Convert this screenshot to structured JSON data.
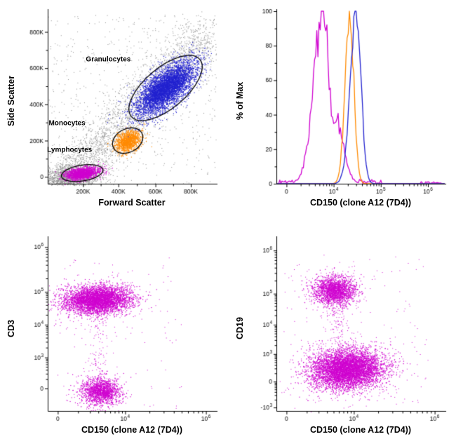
{
  "figure_type": "flow-cytometry-four-panel",
  "colors": {
    "magenta": "#cf00cf",
    "orange": "#ff8a00",
    "blue": "#2222cf",
    "gray": "#8c8c8c",
    "axis": "#000000",
    "background": "#ffffff"
  },
  "chart_data": [
    {
      "id": "fsc-ssc-dotplot",
      "type": "scatter",
      "xlabel": "Forward Scatter",
      "ylabel": "Side Scatter",
      "xlim": [
        "0",
        "940K"
      ],
      "ylim": [
        "0",
        "920K"
      ],
      "x_ticks": [
        {
          "label": "200K",
          "pos": 0.21
        },
        {
          "label": "400K",
          "pos": 0.42
        },
        {
          "label": "600K",
          "pos": 0.64
        },
        {
          "label": "800K",
          "pos": 0.85
        }
      ],
      "y_ticks": [
        {
          "label": "0",
          "pos": 0.04
        },
        {
          "label": "200K",
          "pos": 0.25
        },
        {
          "label": "400K",
          "pos": 0.46
        },
        {
          "label": "600K",
          "pos": 0.67
        },
        {
          "label": "800K",
          "pos": 0.88
        }
      ],
      "x_minor": "linear",
      "y_minor": "linear",
      "seed": 7,
      "clusters": [
        {
          "name": "debris-gray",
          "type": "gauss",
          "color": "gray",
          "cx": 0.14,
          "cy": 0.045,
          "sx": 0.09,
          "sy": 0.035,
          "angle": 5,
          "count": 1500,
          "size": 1
        },
        {
          "name": "background-diagonal-gray",
          "type": "diag",
          "color": "gray",
          "from": [
            0.1,
            0.02
          ],
          "to": [
            0.97,
            0.88
          ],
          "spread": 0.075,
          "count": 2600,
          "size": 1
        },
        {
          "name": "background-sparse-gray",
          "type": "uniform",
          "color": "gray",
          "x0": 0.0,
          "y0": 0.0,
          "x1": 1.0,
          "y1": 0.98,
          "count": 550,
          "size": 1
        },
        {
          "name": "lymphocytes",
          "type": "gauss",
          "color": "magenta",
          "cx": 0.205,
          "cy": 0.062,
          "sx": 0.052,
          "sy": 0.017,
          "angle": 9,
          "count": 1500,
          "size": 1.2
        },
        {
          "name": "monocytes",
          "type": "gauss",
          "color": "orange",
          "cx": 0.475,
          "cy": 0.25,
          "sx": 0.04,
          "sy": 0.027,
          "angle": 28,
          "count": 1200,
          "size": 1.2
        },
        {
          "name": "granulocytes",
          "type": "gauss",
          "color": "blue",
          "cx": 0.7,
          "cy": 0.555,
          "sx": 0.105,
          "sy": 0.046,
          "angle": 40,
          "count": 4800,
          "size": 1.2
        }
      ],
      "gates": [
        {
          "name": "granulocytes-gate",
          "cx": 0.7,
          "cy": 0.555,
          "rx": 0.265,
          "ry": 0.118,
          "angle": 40
        },
        {
          "name": "monocytes-gate",
          "cx": 0.475,
          "cy": 0.25,
          "rx": 0.095,
          "ry": 0.068,
          "angle": 28
        },
        {
          "name": "lymphocytes-gate",
          "cx": 0.205,
          "cy": 0.062,
          "rx": 0.125,
          "ry": 0.046,
          "angle": 9
        }
      ],
      "annotations": [
        {
          "text": "Granulocytes",
          "x": 0.36,
          "y": 0.72
        },
        {
          "text": "Monocytes",
          "x": 0.115,
          "y": 0.35
        },
        {
          "text": "Lymphocytes",
          "x": 0.13,
          "y": 0.195
        }
      ]
    },
    {
      "id": "cd150-histogram",
      "type": "histogram",
      "xlabel": "CD150 (clone A12 (7D4))",
      "ylabel": "% of Max",
      "ylim": [
        0,
        100
      ],
      "x_ticks": [
        {
          "label": "0",
          "pos": 0.06
        },
        {
          "label": "10^4",
          "pos": 0.34
        },
        {
          "label": "10^5",
          "pos": 0.62
        },
        {
          "label": "10^6",
          "pos": 0.9
        }
      ],
      "y_ticks": [
        {
          "label": "0",
          "pos": 0.0
        },
        {
          "label": "20",
          "pos": 0.2
        },
        {
          "label": "40",
          "pos": 0.4
        },
        {
          "label": "60",
          "pos": 0.6
        },
        {
          "label": "80",
          "pos": 0.8
        },
        {
          "label": "100",
          "pos": 1.0
        }
      ],
      "x_minor": "log",
      "y_minor": "linear",
      "seed": 11,
      "series": [
        {
          "name": "Lymphocytes",
          "color": "magenta",
          "jitter": 0.35,
          "peaks": [
            {
              "c": 0.275,
              "h": 97,
              "sl": 0.055,
              "sr": 0.042
            },
            {
              "c": 0.355,
              "h": 36,
              "sl": 0.025,
              "sr": 0.045
            }
          ],
          "base_zones": [
            [
              0.02,
              0.62,
              2.5
            ],
            [
              0.86,
              0.98,
              1.2
            ]
          ]
        },
        {
          "name": "Monocytes",
          "color": "orange",
          "jitter": 0.22,
          "peaks": [
            {
              "c": 0.435,
              "h": 98,
              "sl": 0.027,
              "sr": 0.025
            }
          ],
          "base_zones": []
        },
        {
          "name": "Granulocytes",
          "color": "blue",
          "jitter": 0.16,
          "peaks": [
            {
              "c": 0.475,
              "h": 99,
              "sl": 0.036,
              "sr": 0.028
            }
          ],
          "base_zones": []
        }
      ]
    },
    {
      "id": "cd3-vs-cd150-dotplot",
      "type": "scatter",
      "xlabel": "CD150 (clone A12 (7D4))",
      "ylabel": "CD3",
      "x_ticks": [
        {
          "label": "0",
          "pos": 0.06
        },
        {
          "label": "10^4",
          "pos": 0.46
        },
        {
          "label": "10^6",
          "pos": 0.94
        }
      ],
      "y_ticks": [
        {
          "label": "0",
          "pos": 0.13
        },
        {
          "label": "10^3",
          "pos": 0.31
        },
        {
          "label": "10^4",
          "pos": 0.5
        },
        {
          "label": "10^5",
          "pos": 0.69
        },
        {
          "label": "10^6",
          "pos": 0.95
        }
      ],
      "x_minor": "log",
      "y_minor": "log",
      "seed": 23,
      "clusters": [
        {
          "name": "cd3-positive",
          "type": "gauss",
          "color": "magenta",
          "cx": 0.29,
          "cy": 0.645,
          "sx": 0.095,
          "sy": 0.038,
          "angle": 2,
          "count": 3800,
          "size": 1.2
        },
        {
          "name": "cd3-positive-fringe",
          "type": "gauss",
          "color": "magenta",
          "cx": 0.29,
          "cy": 0.645,
          "sx": 0.14,
          "sy": 0.065,
          "angle": 2,
          "count": 350,
          "size": 1
        },
        {
          "name": "cd3-negative",
          "type": "gauss",
          "color": "magenta",
          "cx": 0.31,
          "cy": 0.115,
          "sx": 0.055,
          "sy": 0.037,
          "angle": 0,
          "count": 1400,
          "size": 1.2
        },
        {
          "name": "cd3-negative-fringe",
          "type": "gauss",
          "color": "magenta",
          "cx": 0.31,
          "cy": 0.115,
          "sx": 0.09,
          "sy": 0.06,
          "angle": 0,
          "count": 150,
          "size": 1
        },
        {
          "name": "between-trail",
          "type": "diag",
          "color": "magenta",
          "from": [
            0.3,
            0.22
          ],
          "to": [
            0.295,
            0.56
          ],
          "spread": 0.03,
          "count": 90,
          "size": 1
        },
        {
          "name": "sparse-events",
          "type": "uniform",
          "color": "magenta",
          "x0": 0.03,
          "y0": 0.0,
          "x1": 0.8,
          "y1": 0.9,
          "count": 120,
          "size": 1
        }
      ]
    },
    {
      "id": "cd19-vs-cd150-dotplot",
      "type": "scatter",
      "xlabel": "CD150 (clone A12 (7D4))",
      "ylabel": "CD19",
      "x_ticks": [
        {
          "label": "0",
          "pos": 0.06
        },
        {
          "label": "10^4",
          "pos": 0.46
        },
        {
          "label": "10^6",
          "pos": 0.94
        }
      ],
      "y_ticks": [
        {
          "label": "-10^3",
          "pos": 0.02
        },
        {
          "label": "0",
          "pos": 0.17
        },
        {
          "label": "10^3",
          "pos": 0.33
        },
        {
          "label": "10^4",
          "pos": 0.5
        },
        {
          "label": "10^5",
          "pos": 0.68
        },
        {
          "label": "10^6",
          "pos": 0.93
        }
      ],
      "x_minor": "log",
      "y_minor": "log",
      "seed": 31,
      "clusters": [
        {
          "name": "cd19-positive",
          "type": "gauss",
          "color": "magenta",
          "cx": 0.345,
          "cy": 0.7,
          "sx": 0.06,
          "sy": 0.04,
          "angle": 0,
          "count": 1700,
          "size": 1.2
        },
        {
          "name": "cd19-positive-fringe",
          "type": "gauss",
          "color": "magenta",
          "cx": 0.345,
          "cy": 0.7,
          "sx": 0.1,
          "sy": 0.07,
          "angle": 0,
          "count": 200,
          "size": 1
        },
        {
          "name": "cd19-negative",
          "type": "gauss",
          "color": "magenta",
          "cx": 0.42,
          "cy": 0.245,
          "sx": 0.105,
          "sy": 0.055,
          "angle": 4,
          "count": 5200,
          "size": 1.2
        },
        {
          "name": "cd19-negative-fringe",
          "type": "gauss",
          "color": "magenta",
          "cx": 0.42,
          "cy": 0.245,
          "sx": 0.16,
          "sy": 0.09,
          "angle": 4,
          "count": 450,
          "size": 1
        },
        {
          "name": "between-trail",
          "type": "diag",
          "color": "magenta",
          "from": [
            0.37,
            0.35
          ],
          "to": [
            0.35,
            0.62
          ],
          "spread": 0.035,
          "count": 110,
          "size": 1
        },
        {
          "name": "sparse-events",
          "type": "uniform",
          "color": "magenta",
          "x0": 0.03,
          "y0": 0.05,
          "x1": 0.9,
          "y1": 0.9,
          "count": 160,
          "size": 1
        }
      ]
    }
  ]
}
